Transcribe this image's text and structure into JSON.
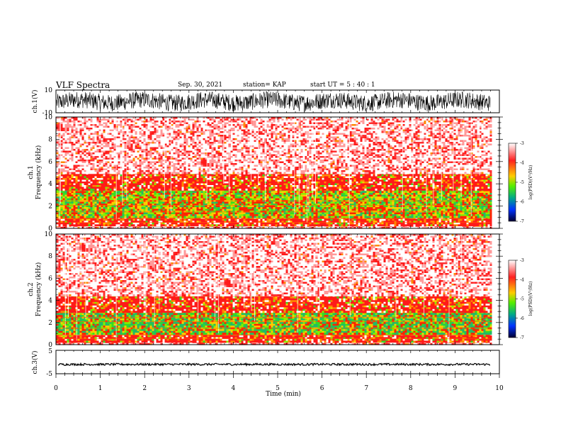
{
  "header": {
    "title": "VLF Spectra",
    "date": "Sep. 30, 2021",
    "station": "station= KAP",
    "start": "start  UT =   5  : 40 : 1"
  },
  "panels": {
    "ch1_wave": {
      "ylabel": "ch.1(V)",
      "ticks": [
        "10",
        "-10"
      ]
    },
    "ch1_spec": {
      "ylabel": "ch.1\nFrequency (kHz)",
      "ticks": [
        "0",
        "2",
        "4",
        "6",
        "8",
        "10"
      ]
    },
    "ch2_spec": {
      "ylabel": "ch.2\nFrequency (kHz)",
      "ticks": [
        "0",
        "2",
        "4",
        "6",
        "8",
        "10"
      ]
    },
    "ch3_wave": {
      "ylabel": "ch.3(V)",
      "ticks": [
        "5",
        "0",
        "-5"
      ]
    },
    "time_axis": {
      "xlabel": "Time (min)",
      "ticks": [
        "0",
        "1",
        "2",
        "3",
        "4",
        "5",
        "6",
        "7",
        "8",
        "9",
        "10"
      ]
    }
  },
  "colorbar": {
    "label": "log(PSD)(V²/Hz)",
    "ticks": [
      "-3",
      "-4",
      "-5",
      "-6",
      "-7"
    ],
    "colors": [
      "#ffffff",
      "#ff0000",
      "#ffcc00",
      "#55ee00",
      "#00aa88",
      "#0033ff",
      "#000033"
    ]
  },
  "chart_data": [
    {
      "type": "line",
      "title": "",
      "ylabel": "ch.1(V)",
      "ylim": [
        -10,
        10
      ],
      "xlim": [
        0,
        10
      ],
      "xunit": "min",
      "series": [
        {
          "values_summary": "noisy broadband waveform mostly between -8 and 8 V"
        }
      ]
    },
    {
      "type": "heatmap",
      "ylabel": "ch.1 Frequency (kHz)",
      "xlim": [
        0,
        10
      ],
      "ylim": [
        0,
        10
      ],
      "colorbar_range": [
        -7,
        -3
      ],
      "bands": [
        {
          "f_range_khz": [
            0,
            0.3
          ],
          "logpsd": -3.5
        },
        {
          "f_range_khz": [
            0.3,
            1.0
          ],
          "logpsd": -4.0
        },
        {
          "f_range_khz": [
            1.0,
            3.5
          ],
          "logpsd": -4.6
        },
        {
          "f_range_khz": [
            3.5,
            5.0
          ],
          "logpsd": -4.0
        },
        {
          "f_range_khz": [
            5.0,
            10.0
          ],
          "logpsd": -3.4
        }
      ],
      "data_end_min": 9.8
    },
    {
      "type": "heatmap",
      "ylabel": "ch.2 Frequency (kHz)",
      "xlim": [
        0,
        10
      ],
      "ylim": [
        0,
        10
      ],
      "colorbar_range": [
        -7,
        -3
      ],
      "bands": [
        {
          "f_range_khz": [
            0,
            0.3
          ],
          "logpsd": -3.5
        },
        {
          "f_range_khz": [
            0.3,
            1.0
          ],
          "logpsd": -4.0
        },
        {
          "f_range_khz": [
            1.0,
            3.0
          ],
          "logpsd": -4.7
        },
        {
          "f_range_khz": [
            3.0,
            4.5
          ],
          "logpsd": -4.0
        },
        {
          "f_range_khz": [
            4.5,
            10.0
          ],
          "logpsd": -3.4
        }
      ],
      "data_end_min": 9.8
    },
    {
      "type": "line",
      "ylabel": "ch.3(V)",
      "ylim": [
        -5,
        5
      ],
      "xlim": [
        0,
        10
      ],
      "xlabel": "Time (min)",
      "series": [
        {
          "values_summary": "nearly constant near -1 V with small noise"
        }
      ]
    }
  ]
}
